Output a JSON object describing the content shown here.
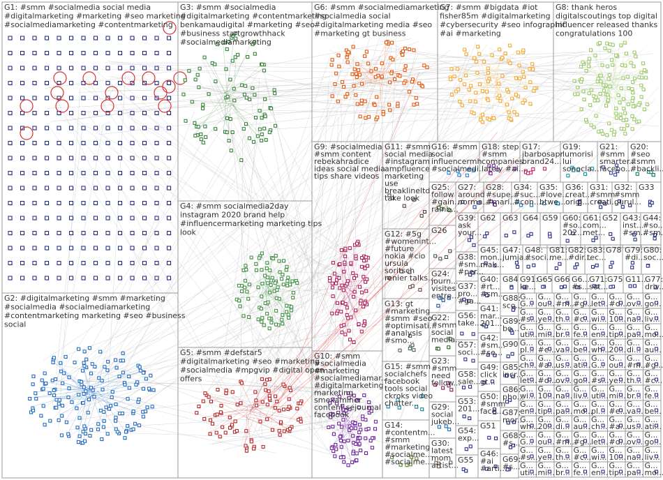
{
  "title": "",
  "colors": {
    "background": "#ffffff",
    "box": "#9a9a9a",
    "label": "#333333",
    "edge": "#b5b5b5",
    "self_loop": "#d32f2f"
  },
  "groups": [
    {
      "id": "G1",
      "lines": [
        "G1: #smm #socialmedia social media",
        "#digitalmarketing #marketing #seo marketing",
        "#socialmediamarketing #contentmarketing"
      ],
      "color": "#1a237e",
      "layout": "grid"
    },
    {
      "id": "G2",
      "lines": [
        "G2: #digitalmarketing #smm #marketing",
        "#socialmedia #socialmediamarketing",
        "#contentmarketing marketing #seo #business",
        "social"
      ],
      "color": "#1565c0",
      "layout": "cluster"
    },
    {
      "id": "G3",
      "lines": [
        "G3: #smm #socialmedia",
        "#digitalmarketing #contentmarketing",
        "benkamaudigital #marketing #seo",
        "#business startgrowthhack",
        "#socialmediamarketing"
      ],
      "color": "#2e7d32",
      "layout": "cluster"
    },
    {
      "id": "G4",
      "lines": [
        "G4: #smm socialmedia2day",
        "instagram 2020 brand help",
        "#influencermarketing marketing tips",
        "look"
      ],
      "color": "#388e3c",
      "layout": "cluster"
    },
    {
      "id": "G5",
      "lines": [
        "G5: #smm #defstar5",
        "#digitalmarketing #seo #marketing",
        "#socialmedia #mpgvip #digital open",
        "offers"
      ],
      "color": "#b71c1c",
      "layout": "cluster"
    },
    {
      "id": "G6",
      "lines": [
        "G6: #smm #socialmediamarketing",
        "#socialmedia social",
        "#digitalmarketing media #seo",
        "#marketing gt business"
      ],
      "color": "#e65100",
      "layout": "cluster"
    },
    {
      "id": "G7",
      "lines": [
        "G7: #smm #bigdata #iot",
        "fisher85m #digitalmarketing",
        "#cybersecurity #seo infographic",
        "#ai #marketing"
      ],
      "color": "#f9a825",
      "layout": "cluster"
    },
    {
      "id": "G8",
      "lines": [
        "G8: thank heros",
        "digitalscoutings top digital",
        "influencer released thanks",
        "congratulations 100"
      ],
      "color": "#9ccc65",
      "layout": "cluster"
    },
    {
      "id": "G9",
      "lines": [
        "G9: #socialmedia",
        "#smm content",
        "rebekahradice",
        "ideas social media",
        "tips share videos"
      ],
      "color": "#ad1457",
      "layout": "cluster"
    },
    {
      "id": "G10",
      "lines": [
        "G10: #smm",
        "#socialmedia",
        "#marketing",
        "#socialmediamar...",
        "#digitalmarketing",
        "marketing",
        "smexaminer",
        "content sejournal",
        "facebook"
      ],
      "color": "#6a1b9a",
      "layout": "cluster"
    },
    {
      "id": "G11",
      "lines": [
        "G11: #smm",
        "social media",
        "#instagram",
        "ampfluence",
        "marketing",
        "use",
        "breaklineltd",
        "take look"
      ],
      "color": "#4e342e",
      "layout": "cluster"
    },
    {
      "id": "G12",
      "lines": [
        "G12: #5g",
        "#womenint...",
        "#future",
        "nokia #cio",
        "ursula",
        "soritsch",
        "renier talks..."
      ],
      "color": "#5d4037",
      "layout": "cluster"
    },
    {
      "id": "G13",
      "lines": [
        "G13: gt",
        "#marketing",
        "#smm #seo",
        "#optimisati...",
        "#analysis",
        "#smo..."
      ],
      "color": "#455a64",
      "layout": "cluster"
    },
    {
      "id": "G14",
      "lines": [
        "G14:",
        "#contentm...",
        "#smm",
        "#marketing",
        "#socialme...",
        "#socialme..."
      ],
      "color": "#558b2f",
      "layout": "cluster"
    },
    {
      "id": "G15",
      "lines": [
        "G15: #smm",
        "socialchefs",
        "facebook",
        "tools social",
        "ckroks video",
        "chatter..."
      ],
      "color": "#00838f",
      "layout": "cluster"
    },
    {
      "id": "G16",
      "lines": [
        "G16: #smm",
        "social",
        "influencermh",
        "#socialmedi..."
      ],
      "color": "#1976d2",
      "layout": "cluster"
    },
    {
      "id": "G17",
      "lines": [
        "G17:",
        "jbarbosapr",
        "brand24..."
      ],
      "color": "#c2185b",
      "layout": "cluster"
    },
    {
      "id": "G18",
      "lines": [
        "G18: step",
        "#smm",
        "companies",
        "lately #ai..."
      ],
      "color": "#7b1fa2",
      "layout": "cluster"
    },
    {
      "id": "G19",
      "lines": [
        "G19:",
        "lumorisi",
        "lui",
        "sonocla..."
      ],
      "color": "#0097a7",
      "layout": "cluster"
    },
    {
      "id": "G20",
      "lines": [
        "G20:",
        "#seo",
        "#smm",
        "#backli..."
      ],
      "color": "#00796b",
      "layout": "cluster"
    },
    {
      "id": "G21",
      "lines": [
        "G21:",
        "#smm",
        "smarter...",
        "facebo..."
      ],
      "color": "#303f9f",
      "layout": "cluster"
    },
    {
      "id": "G22",
      "lines": [
        "G22:",
        "#smm",
        "social",
        "media..."
      ],
      "color": "#1b5e20",
      "layout": "cluster"
    },
    {
      "id": "G23",
      "lines": [
        "G23:",
        "#smm",
        "need",
        "follow..."
      ],
      "color": "#880e4f",
      "layout": "cluster"
    },
    {
      "id": "G24",
      "lines": [
        "G24:",
        "journ...",
        "visites",
        "entre..."
      ],
      "color": "#0d47a1",
      "layout": "cluster"
    },
    {
      "id": "G25",
      "lines": [
        "G25:",
        "follow",
        "#gain...",
        "rainb..."
      ],
      "color": "#33691e",
      "layout": "cluster"
    },
    {
      "id": "G26",
      "lines": [
        "G26"
      ],
      "color": "#37474f",
      "layout": "cluster"
    },
    {
      "id": "G27",
      "lines": [
        "G27:",
        "around",
        "norma..."
      ],
      "color": "#283593",
      "layout": "cluster"
    },
    {
      "id": "G28",
      "lines": [
        "G28:",
        "#supe...",
        "#mari..."
      ],
      "color": "#4a148c",
      "layout": "cluster"
    },
    {
      "id": "G29",
      "lines": [
        "G29:",
        "social",
        "jukeb..."
      ],
      "color": "#1565c0",
      "layout": "cluster"
    },
    {
      "id": "G30",
      "lines": [
        "G30:",
        "latest",
        "mom",
        "artist..."
      ],
      "color": "#6d4c41",
      "layout": "cluster"
    },
    {
      "id": "G31",
      "lines": [
        "G31:",
        "#smm",
        "creati..."
      ],
      "color": "#1a237e",
      "layout": "cluster"
    },
    {
      "id": "G32",
      "lines": [
        "G32:",
        "#smm",
        "gurul..."
      ],
      "color": "#1a237e",
      "layout": "cluster"
    },
    {
      "id": "G33",
      "lines": [
        "G33"
      ],
      "color": "#1a237e",
      "layout": "cluster"
    },
    {
      "id": "G34",
      "lines": [
        "G34:",
        "#suc...",
        "#con..."
      ],
      "color": "#0277bd",
      "layout": "cluster"
    },
    {
      "id": "G35",
      "lines": [
        "G35:",
        "#love...",
        "btwe..."
      ],
      "color": "#0277bd",
      "layout": "cluster"
    },
    {
      "id": "G36",
      "lines": [
        "G36:",
        "creat...",
        "origi..."
      ],
      "color": "#1a237e",
      "layout": "cluster"
    },
    {
      "id": "G37",
      "lines": [
        "G37:",
        "pro...",
        "#ga...",
        "#di..."
      ],
      "color": "#1a237e",
      "layout": "cluster"
    },
    {
      "id": "G38",
      "lines": [
        "G38:",
        "#sm...",
        "#per..."
      ],
      "color": "#1a237e",
      "layout": "cluster"
    },
    {
      "id": "G39",
      "lines": [
        "G39:",
        "ask",
        "your..."
      ],
      "color": "#1a237e",
      "layout": "cluster"
    },
    {
      "id": "G40",
      "lines": [
        "G40:",
        "#rt...",
        "#sm..."
      ],
      "color": "#1a237e",
      "layout": "cluster"
    },
    {
      "id": "G41",
      "lines": [
        "G41:",
        "mar...",
        "201..."
      ],
      "color": "#1a237e",
      "layout": "cluster"
    },
    {
      "id": "G42",
      "lines": [
        "G42:",
        "#sm...",
        "#se..."
      ],
      "color": "#1a237e",
      "layout": "cluster"
    },
    {
      "id": "G43",
      "lines": [
        "G43:",
        "inst...",
        "#sm..."
      ],
      "color": "#1a237e",
      "layout": "cluster"
    },
    {
      "id": "G44",
      "lines": [
        "G44:",
        "#so...",
        "#sm..."
      ],
      "color": "#1a237e",
      "layout": "cluster"
    },
    {
      "id": "G45",
      "lines": [
        "G45:",
        "mon...",
        "mak..."
      ],
      "color": "#1a237e",
      "layout": "cluster"
    },
    {
      "id": "G46",
      "lines": [
        "G46:",
        "#ai",
        "#arti..."
      ],
      "color": "#1a237e",
      "layout": "cluster"
    },
    {
      "id": "G47",
      "lines": [
        "G47:",
        "jumja..."
      ],
      "color": "#1a237e",
      "layout": "cluster"
    },
    {
      "id": "G48",
      "lines": [
        "G48:",
        "#soci..."
      ],
      "color": "#1a237e",
      "layout": "cluster"
    },
    {
      "id": "G49",
      "lines": [
        "G49:",
        "click",
        "gt..."
      ],
      "color": "#1a237e",
      "layout": "cluster"
    },
    {
      "id": "G50",
      "lines": [
        "G50:",
        "#smm",
        "face..."
      ],
      "color": "#1a237e",
      "layout": "cluster"
    },
    {
      "id": "G51",
      "lines": [
        "G51"
      ],
      "color": "#1a237e",
      "layout": "cluster"
    },
    {
      "id": "G52",
      "lines": [
        "G52"
      ],
      "color": "#1a237e",
      "layout": "cluster"
    },
    {
      "id": "G53",
      "lines": [
        "G53:",
        "201..."
      ],
      "color": "#1a237e",
      "layout": "cluster"
    },
    {
      "id": "G54",
      "lines": [
        "G54:",
        "exp..."
      ],
      "color": "#1a237e",
      "layout": "cluster"
    },
    {
      "id": "G55",
      "lines": [
        "G55"
      ],
      "color": "#1a237e",
      "layout": "cluster"
    },
    {
      "id": "G56",
      "lines": [
        "G56:",
        "take..."
      ],
      "color": "#1a237e",
      "layout": "cluster"
    },
    {
      "id": "G57",
      "lines": [
        "G57:",
        "soci..."
      ],
      "color": "#1a237e",
      "layout": "cluster"
    },
    {
      "id": "G58",
      "lines": [
        "G58:",
        "sale..."
      ],
      "color": "#1a237e",
      "layout": "cluster"
    },
    {
      "id": "G59",
      "lines": [
        "G59"
      ],
      "color": "#1a237e",
      "layout": "cluster"
    },
    {
      "id": "G60",
      "lines": [
        "G60:",
        "#so...",
        "202..."
      ],
      "color": "#1a237e",
      "layout": "cluster"
    },
    {
      "id": "G61",
      "lines": [
        "G61:",
        "com...",
        "met..."
      ],
      "color": "#1a237e",
      "layout": "cluster"
    },
    {
      "id": "G62",
      "lines": [
        "G62"
      ],
      "color": "#1a237e",
      "layout": "cluster"
    },
    {
      "id": "G63",
      "lines": [
        "G63"
      ],
      "color": "#1a237e",
      "layout": "cluster"
    },
    {
      "id": "G64",
      "lines": [
        "G64"
      ],
      "color": "#1a237e",
      "layout": "cluster"
    },
    {
      "id": "G65",
      "lines": [
        "G65"
      ],
      "color": "#1a237e",
      "layout": "cluster"
    },
    {
      "id": "G66",
      "lines": [
        "G66"
      ],
      "color": "#1a237e",
      "layout": "cluster"
    },
    {
      "id": "G67",
      "lines": [
        "G6...",
        "#s..."
      ],
      "color": "#1a237e",
      "layout": "cluster"
    },
    {
      "id": "G68",
      "lines": [
        "G68:",
        "#s...",
        "gt..."
      ],
      "color": "#1a237e",
      "layout": "cluster"
    },
    {
      "id": "G69",
      "lines": [
        "G69:",
        "#s...",
        "#s..."
      ],
      "color": "#1a237e",
      "layout": "cluster"
    },
    {
      "id": "G71",
      "lines": [
        "G71:",
        "set..."
      ],
      "color": "#1a237e",
      "layout": "cluster"
    },
    {
      "id": "G75",
      "lines": [
        "G75"
      ],
      "color": "#1a237e",
      "layout": "cluster"
    },
    {
      "id": "G77",
      "lines": [
        "G77:",
        "driv..."
      ],
      "color": "#1a237e",
      "layout": "cluster"
    },
    {
      "id": "G78",
      "lines": [
        "G78"
      ],
      "color": "#1a237e",
      "layout": "cluster"
    },
    {
      "id": "G79",
      "lines": [
        "G79:",
        "#di..."
      ],
      "color": "#1a237e",
      "layout": "cluster"
    },
    {
      "id": "G80",
      "lines": [
        "G80:",
        "soc..."
      ],
      "color": "#1a237e",
      "layout": "cluster"
    },
    {
      "id": "G81",
      "lines": [
        "G81:",
        "me..."
      ],
      "color": "#1a237e",
      "layout": "cluster"
    },
    {
      "id": "G82",
      "lines": [
        "G82:",
        "#dir..."
      ],
      "color": "#1a237e",
      "layout": "cluster"
    },
    {
      "id": "G83",
      "lines": [
        "G83:",
        "tec..."
      ],
      "color": "#1a237e",
      "layout": "cluster"
    },
    {
      "id": "G84",
      "lines": [
        "G84"
      ],
      "color": "#1a237e",
      "layout": "cluster"
    },
    {
      "id": "G85",
      "lines": [
        "G85:",
        "incr..."
      ],
      "color": "#1a237e",
      "layout": "cluster"
    },
    {
      "id": "G86",
      "lines": [
        "G86:",
        "pho..."
      ],
      "color": "#1a237e",
      "layout": "cluster"
    },
    {
      "id": "G87",
      "lines": [
        "G87:",
        "mor..."
      ],
      "color": "#1a237e",
      "layout": "cluster"
    },
    {
      "id": "G88",
      "lines": [
        "G88:",
        "sco..."
      ],
      "color": "#1a237e",
      "layout": "cluster"
    },
    {
      "id": "G89",
      "lines": [
        "G89:",
        "bo..."
      ],
      "color": "#1a237e",
      "layout": "cluster"
    },
    {
      "id": "G90",
      "lines": [
        "G90"
      ],
      "color": "#1a237e",
      "layout": "cluster"
    },
    {
      "id": "G91",
      "lines": [
        "G91:",
        "ke..."
      ],
      "color": "#1a237e",
      "layout": "cluster"
    },
    {
      "id": "G11x",
      "lines": [
        "G11..."
      ],
      "color": "#1a237e",
      "layout": "cluster"
    }
  ],
  "tiny_labels": [
    "G...",
    "ou...",
    "#m...",
    "#g...",
    "let...",
    "#d...",
    "ov...",
    "go...",
    "#s...",
    "ye...",
    "th...",
    "#c...",
    "wi...",
    "10...",
    "na...",
    "liv...",
    "uti...",
    "mi...",
    "br...",
    "fe...",
    "en...",
    "tip...",
    "pa...",
    "mo...",
    "pl...",
    "#e...",
    "va...",
    "be...",
    "wh...",
    "20...",
    "di...",
    "au...",
    "ch...",
    "#a...",
    "us...",
    "ati..."
  ]
}
